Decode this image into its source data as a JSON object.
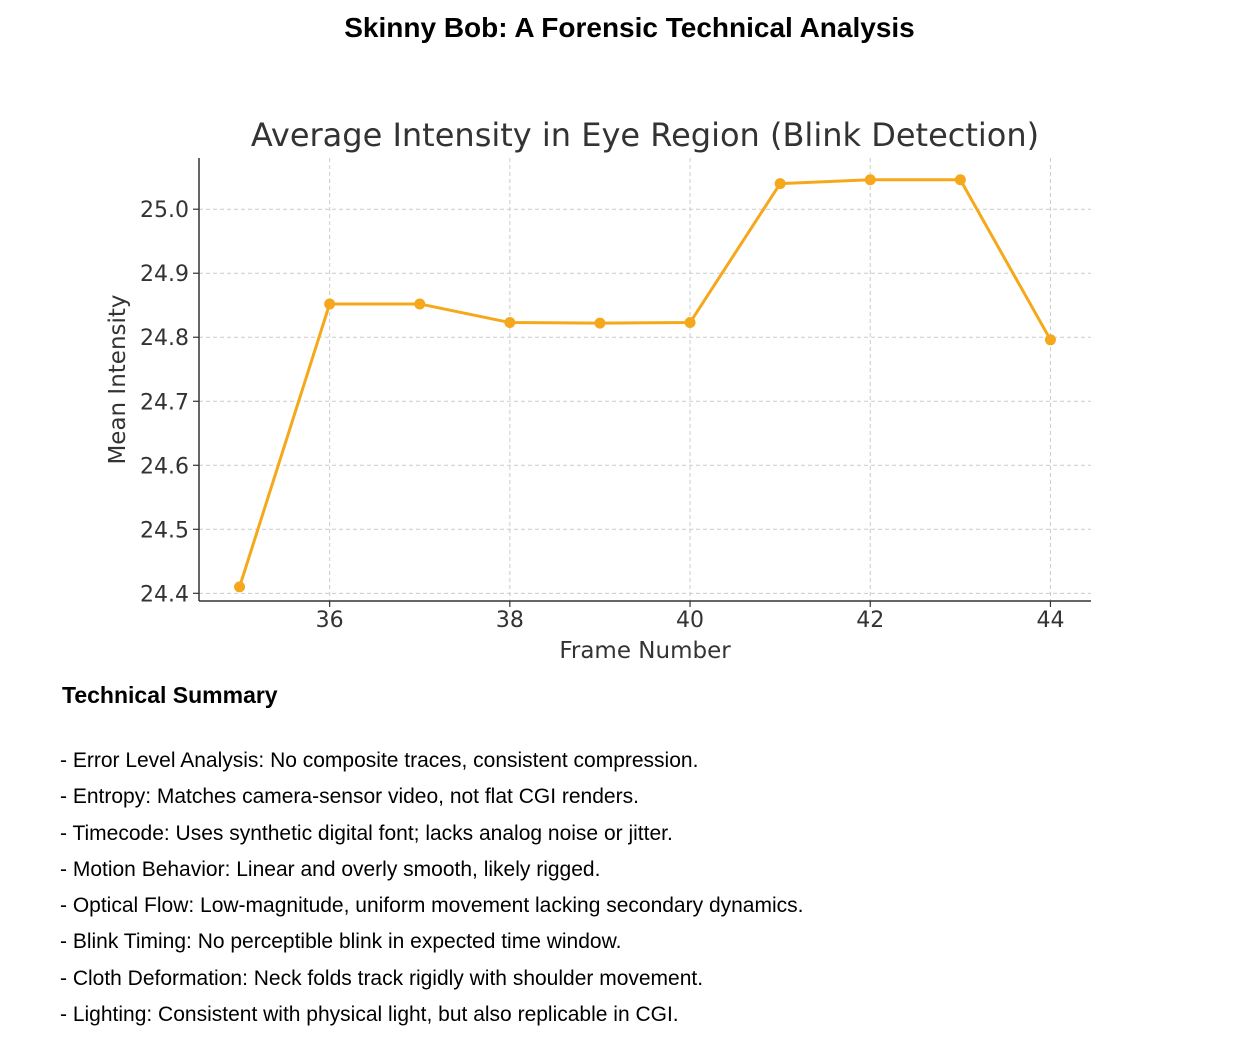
{
  "document": {
    "title": "Skinny Bob: A Forensic Technical Analysis"
  },
  "chart_data": {
    "type": "line",
    "title": "Average Intensity in Eye Region (Blink Detection)",
    "xlabel": "Frame Number",
    "ylabel": "Mean Intensity",
    "x": [
      35,
      36,
      37,
      38,
      39,
      40,
      41,
      42,
      43,
      44
    ],
    "series": [
      {
        "values": [
          24.41,
          24.852,
          24.852,
          24.823,
          24.822,
          24.823,
          25.04,
          25.046,
          25.046,
          24.796
        ],
        "color": "#f5a81c"
      }
    ],
    "xticks": [
      36,
      38,
      40,
      42,
      44
    ],
    "yticks": [
      24.4,
      24.5,
      24.6,
      24.7,
      24.8,
      24.9,
      25.0
    ],
    "xtick_labels": [
      "36",
      "38",
      "40",
      "42",
      "44"
    ],
    "ytick_labels": [
      "24.4",
      "24.5",
      "24.6",
      "24.7",
      "24.8",
      "24.9",
      "25.0"
    ],
    "xlim": [
      34.55,
      44.45
    ],
    "ylim": [
      24.388,
      25.08
    ],
    "grid": true,
    "marker": "circle"
  },
  "summary": {
    "heading": "Technical Summary",
    "items": [
      "- Error Level Analysis: No composite traces, consistent compression.",
      "- Entropy: Matches camera-sensor video, not flat CGI renders.",
      "- Timecode: Uses synthetic digital font; lacks analog noise or jitter.",
      "- Motion Behavior: Linear and overly smooth, likely rigged.",
      "- Optical Flow: Low-magnitude, uniform movement lacking secondary dynamics.",
      "- Blink Timing: No perceptible blink in expected time window.",
      "- Cloth Deformation: Neck folds track rigidly with shoulder movement.",
      "- Lighting: Consistent with physical light, but also replicable in CGI."
    ]
  }
}
